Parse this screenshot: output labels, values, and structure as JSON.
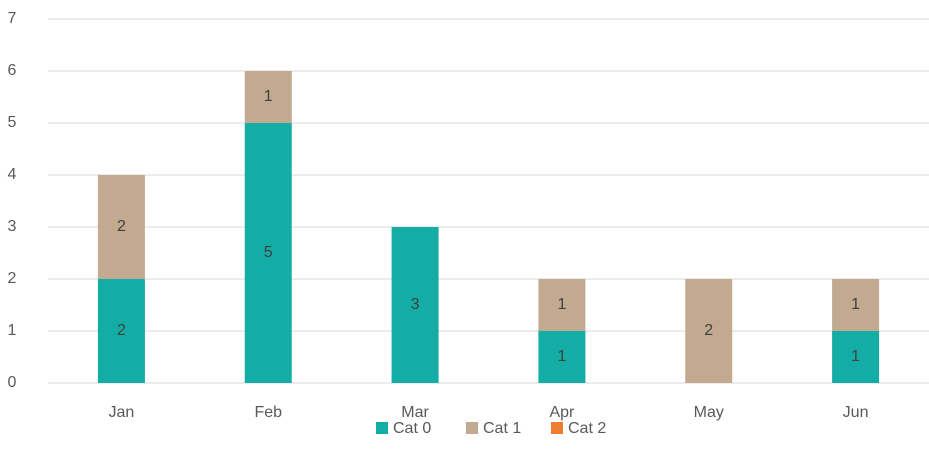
{
  "chart_data": {
    "type": "stacked_bar",
    "categories": [
      "Jan",
      "Feb",
      "Mar",
      "Apr",
      "May",
      "Jun"
    ],
    "series": [
      {
        "name": "Cat 0",
        "color": "#14ada5",
        "values": [
          2,
          5,
          3,
          1,
          0,
          1
        ]
      },
      {
        "name": "Cat 1",
        "color": "#c1aa90",
        "values": [
          2,
          1,
          0,
          1,
          2,
          1
        ]
      },
      {
        "name": "Cat 2",
        "color": "#ed7d31",
        "values": [
          0,
          0,
          0,
          0,
          0,
          0
        ]
      }
    ],
    "ylim": [
      0,
      7
    ],
    "yticks": [
      0,
      1,
      2,
      3,
      4,
      5,
      6,
      7
    ],
    "grid": true,
    "legend": "bottom"
  }
}
